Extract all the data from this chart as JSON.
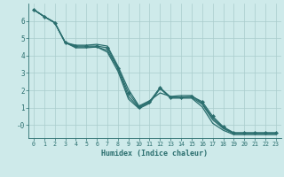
{
  "xlabel": "Humidex (Indice chaleur)",
  "background_color": "#ceeaea",
  "line_color": "#2a6e6e",
  "grid_color": "#aacccc",
  "xlim": [
    -0.5,
    23.5
  ],
  "ylim": [
    -0.75,
    7.0
  ],
  "xticks": [
    0,
    1,
    2,
    3,
    4,
    5,
    6,
    7,
    8,
    9,
    10,
    11,
    12,
    13,
    14,
    15,
    16,
    17,
    18,
    19,
    20,
    21,
    22,
    23
  ],
  "yticks": [
    0,
    1,
    2,
    3,
    4,
    5,
    6
  ],
  "ytick_labels": [
    "-0",
    "1",
    "2",
    "3",
    "4",
    "5",
    "6"
  ],
  "lines": [
    {
      "x": [
        0,
        1,
        2,
        3,
        4,
        5,
        6,
        7,
        8,
        9,
        10,
        11,
        12,
        13,
        14,
        15,
        16,
        17,
        18,
        19,
        20,
        21,
        22,
        23
      ],
      "y": [
        6.65,
        6.25,
        5.9,
        4.75,
        4.55,
        4.55,
        4.55,
        4.45,
        3.3,
        1.85,
        1.05,
        1.35,
        2.15,
        1.6,
        1.6,
        1.65,
        1.35,
        0.5,
        -0.1,
        -0.45,
        -0.45,
        -0.45,
        -0.45,
        -0.45
      ],
      "marker": true
    },
    {
      "x": [
        0,
        1,
        2,
        3,
        4,
        5,
        6,
        7,
        8,
        9,
        10,
        11,
        12,
        13,
        14,
        15,
        16,
        17,
        18,
        19,
        20,
        21,
        22,
        23
      ],
      "y": [
        6.65,
        6.25,
        5.9,
        4.75,
        4.6,
        4.6,
        4.65,
        4.55,
        3.4,
        2.05,
        1.1,
        1.4,
        1.85,
        1.65,
        1.7,
        1.7,
        1.25,
        0.4,
        -0.15,
        -0.45,
        -0.45,
        -0.45,
        -0.45,
        -0.45
      ],
      "marker": false
    },
    {
      "x": [
        0,
        1,
        2,
        3,
        4,
        5,
        6,
        7,
        8,
        9,
        10,
        11,
        12,
        13,
        14,
        15,
        16,
        17,
        18,
        19,
        20,
        21,
        22,
        23
      ],
      "y": [
        6.65,
        6.25,
        5.9,
        4.75,
        4.5,
        4.5,
        4.5,
        4.3,
        3.25,
        1.65,
        1.0,
        1.3,
        2.15,
        1.6,
        1.6,
        1.6,
        1.2,
        0.3,
        -0.2,
        -0.5,
        -0.5,
        -0.5,
        -0.5,
        -0.5
      ],
      "marker": false
    },
    {
      "x": [
        0,
        1,
        2,
        3,
        4,
        5,
        6,
        7,
        8,
        9,
        10,
        11,
        12,
        13,
        14,
        15,
        16,
        17,
        18,
        19,
        20,
        21,
        22,
        23
      ],
      "y": [
        6.65,
        6.25,
        5.9,
        4.75,
        4.45,
        4.45,
        4.5,
        4.2,
        3.1,
        1.5,
        0.95,
        1.25,
        2.1,
        1.55,
        1.55,
        1.55,
        1.05,
        0.1,
        -0.3,
        -0.55,
        -0.55,
        -0.55,
        -0.55,
        -0.55
      ],
      "marker": false
    }
  ]
}
